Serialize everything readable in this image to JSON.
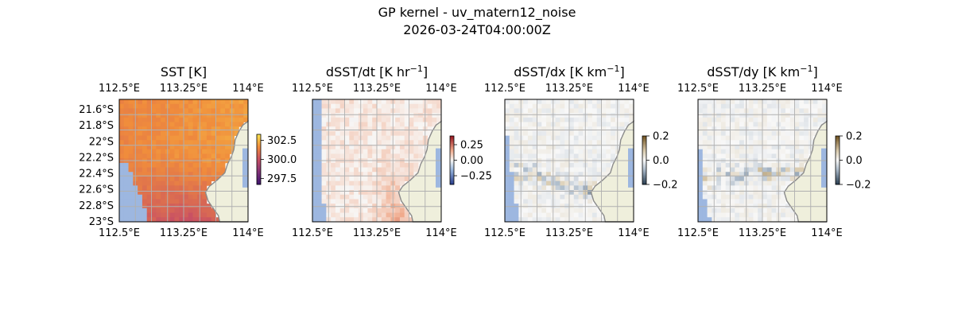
{
  "title_line1": "GP kernel - uv_matern12_noise",
  "title_line2": "2026-03-24T04:00:00Z",
  "panels": [
    {
      "title": "SST [K]",
      "colorbar_ticks": [
        "302.5",
        "300.0",
        "297.5"
      ],
      "colormap": "plasma_light",
      "show_lat_labels": true
    },
    {
      "title": "dSST/dt [K hr",
      "title_sup": "−1",
      "title_tail": "]",
      "colorbar_ticks": [
        "0.25",
        "0.00",
        "−0.25"
      ],
      "colormap": "diverging_red_blue",
      "show_lat_labels": false
    },
    {
      "title": "dSST/dx [K km",
      "title_sup": "−1",
      "title_tail": "]",
      "colorbar_ticks": [
        "0.2",
        "0.0",
        "−0.2"
      ],
      "colormap": "diverging_brown_slate",
      "show_lat_labels": false
    },
    {
      "title": "dSST/dy [K km",
      "title_sup": "−1",
      "title_tail": "]",
      "colorbar_ticks": [
        "0.2",
        "0.0",
        "−0.2"
      ],
      "colormap": "diverging_brown_slate",
      "show_lat_labels": false
    }
  ],
  "axes": {
    "lon_ticks": [
      "112.5°E",
      "113.25°E",
      "114°E"
    ],
    "lat_ticks": [
      "21.6°S",
      "21.8°S",
      "22°S",
      "22.2°S",
      "22.4°S",
      "22.6°S",
      "22.8°S",
      "23°S"
    ]
  },
  "colors": {
    "ocean_mask": "#9db7e0",
    "land": "#efefdc",
    "coastline": "#8a8a8a",
    "grid": "#b0b0b0"
  },
  "chart_data": [
    {
      "type": "heatmap",
      "title": "SST [K]",
      "xlim": [
        112.5,
        114.0
      ],
      "ylim": [
        -23.0,
        -21.5
      ],
      "clim": [
        297.0,
        303.0
      ],
      "colorbar_ticks": [
        302.5,
        300.0,
        297.5
      ]
    },
    {
      "type": "heatmap",
      "title": "dSST/dt [K hr−1]",
      "xlim": [
        112.5,
        114.0
      ],
      "ylim": [
        -23.0,
        -21.5
      ],
      "clim": [
        -0.35,
        0.35
      ],
      "colorbar_ticks": [
        0.25,
        0.0,
        -0.25
      ]
    },
    {
      "type": "heatmap",
      "title": "dSST/dx [K km−1]",
      "xlim": [
        112.5,
        114.0
      ],
      "ylim": [
        -23.0,
        -21.5
      ],
      "clim": [
        -0.2,
        0.2
      ],
      "colorbar_ticks": [
        0.2,
        0.0,
        -0.2
      ]
    },
    {
      "type": "heatmap",
      "title": "dSST/dy [K km−1]",
      "xlim": [
        112.5,
        114.0
      ],
      "ylim": [
        -23.0,
        -21.5
      ],
      "clim": [
        -0.2,
        0.2
      ],
      "colorbar_ticks": [
        0.2,
        0.0,
        -0.2
      ]
    }
  ]
}
